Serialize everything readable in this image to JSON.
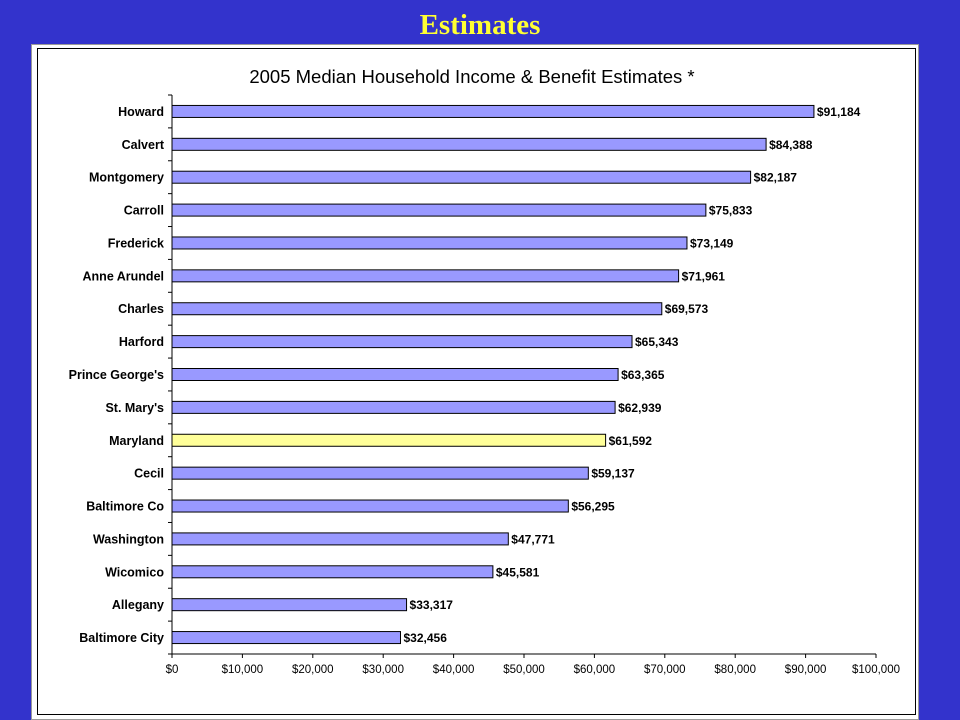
{
  "slide": {
    "title": "Estimates"
  },
  "colors": {
    "background": "#3333cc",
    "title": "#ffff33",
    "bar": "#9999ff",
    "highlight": "#ffff99"
  },
  "chart_data": {
    "type": "bar",
    "orientation": "horizontal",
    "title": "2005 Median Household Income & Benefit Estimates *",
    "xlabel": "",
    "ylabel": "",
    "xlim": [
      0,
      100000
    ],
    "xticks": [
      0,
      10000,
      20000,
      30000,
      40000,
      50000,
      60000,
      70000,
      80000,
      90000,
      100000
    ],
    "xtick_labels": [
      "$0",
      "$10,000",
      "$20,000",
      "$30,000",
      "$40,000",
      "$50,000",
      "$60,000",
      "$70,000",
      "$80,000",
      "$90,000",
      "$100,000"
    ],
    "grid": false,
    "legend": "none",
    "categories": [
      "Howard",
      "Calvert",
      "Montgomery",
      "Carroll",
      "Frederick",
      "Anne Arundel",
      "Charles",
      "Harford",
      "Prince George's",
      "St. Mary's",
      "Maryland",
      "Cecil",
      "Baltimore Co",
      "Washington",
      "Wicomico",
      "Allegany",
      "Baltimore City"
    ],
    "values": [
      91184,
      84388,
      82187,
      75833,
      73149,
      71961,
      69573,
      65343,
      63365,
      62939,
      61592,
      59137,
      56295,
      47771,
      45581,
      33317,
      32456
    ],
    "value_labels": [
      "$91,184",
      "$84,388",
      "$82,187",
      "$75,833",
      "$73,149",
      "$71,961",
      "$69,573",
      "$65,343",
      "$63,365",
      "$62,939",
      "$61,592",
      "$59,137",
      "$56,295",
      "$47,771",
      "$45,581",
      "$33,317",
      "$32,456"
    ],
    "highlight_category": "Maryland"
  }
}
